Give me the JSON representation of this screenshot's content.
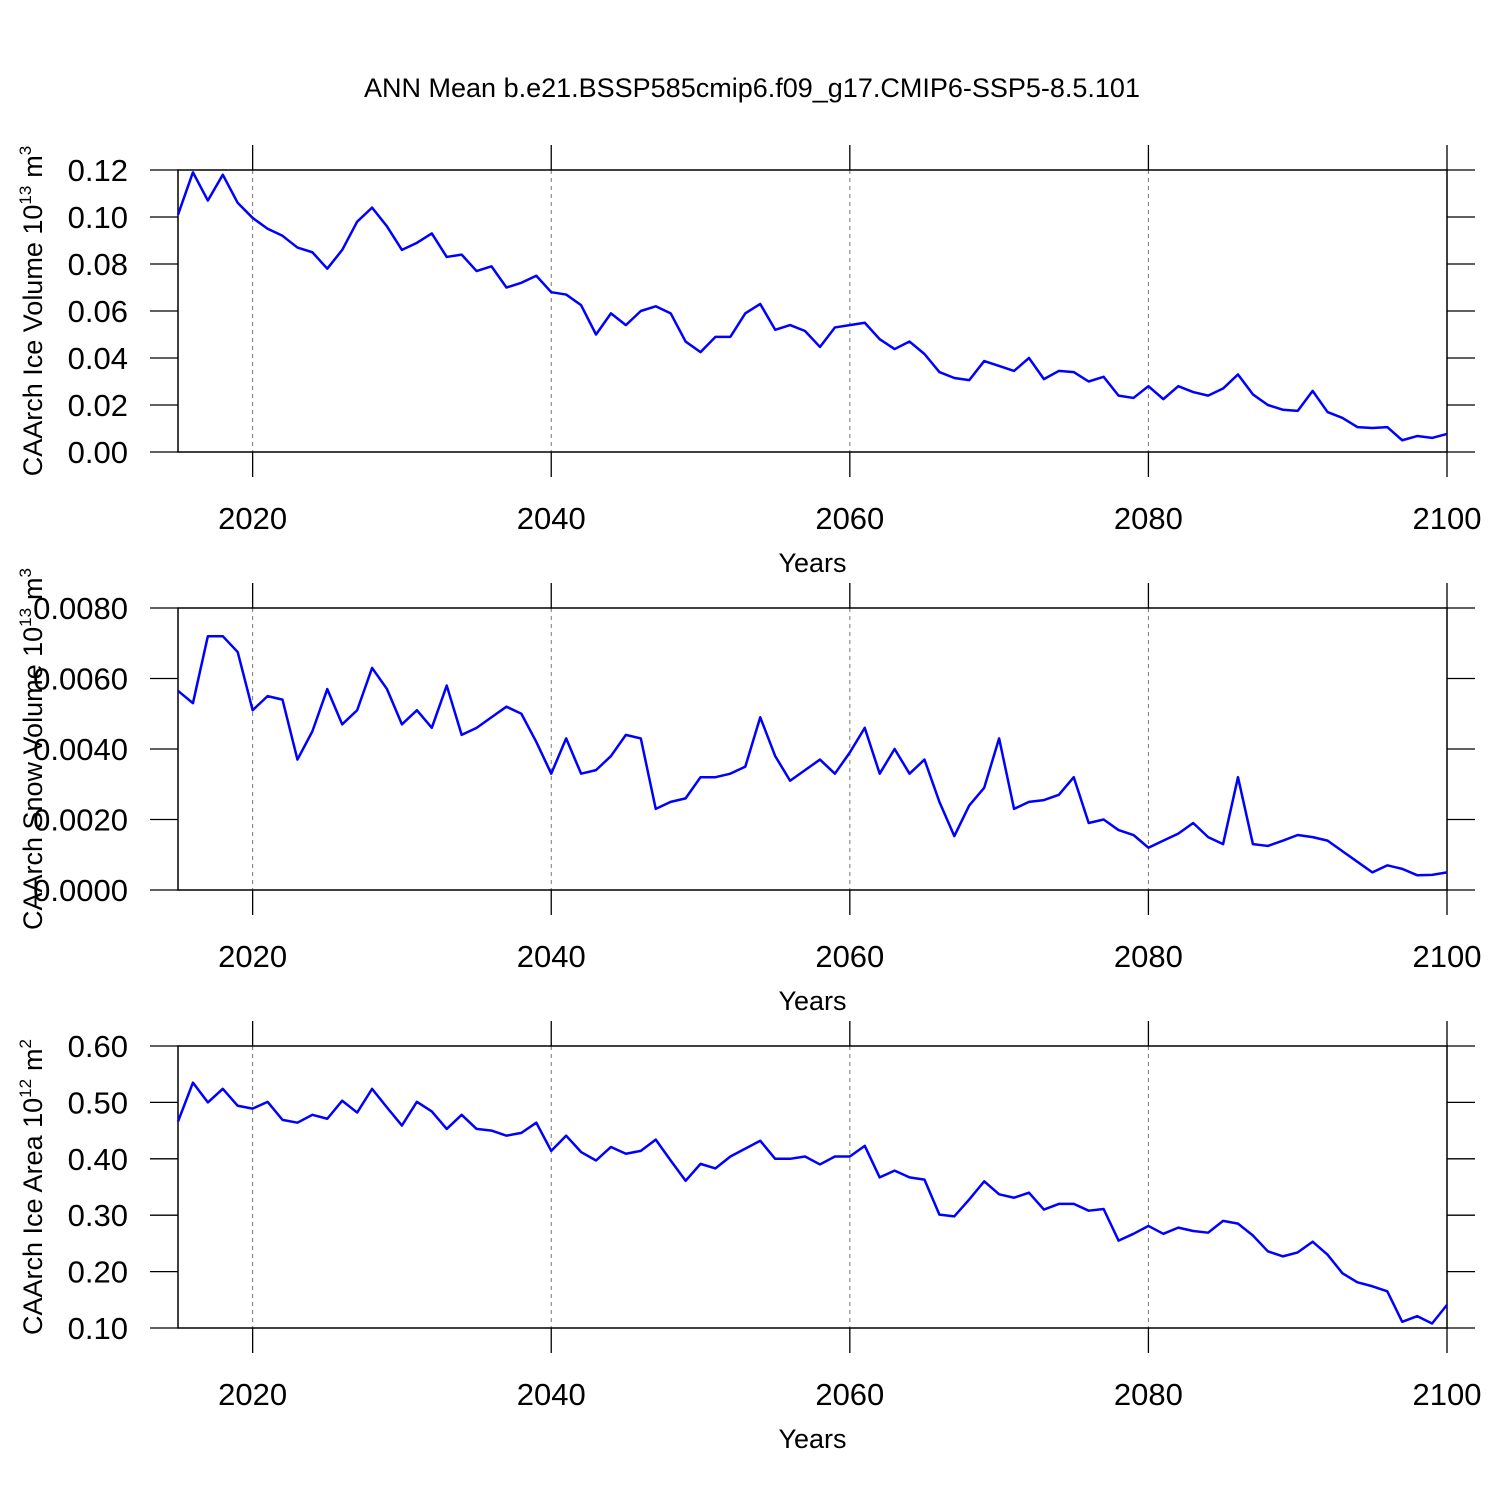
{
  "chart_data": [
    {
      "type": "line",
      "title": "ANN Mean b.e21.BSSP585cmip6.f09_g17.CMIP6-SSP5-8.5.101",
      "ylabel": {
        "text": "CAArch Ice Volume 10",
        "exp": "13",
        "unit": "m",
        "unit_exp": "3"
      },
      "xlabel": "Years",
      "color": "#0000ff",
      "x": [
        2015,
        2016,
        2017,
        2018,
        2019,
        2020,
        2021,
        2022,
        2023,
        2024,
        2025,
        2026,
        2027,
        2028,
        2029,
        2030,
        2031,
        2032,
        2033,
        2034,
        2035,
        2036,
        2037,
        2038,
        2039,
        2040,
        2041,
        2042,
        2043,
        2044,
        2045,
        2046,
        2047,
        2048,
        2049,
        2050,
        2051,
        2052,
        2053,
        2054,
        2055,
        2056,
        2057,
        2058,
        2059,
        2060,
        2061,
        2062,
        2063,
        2064,
        2065,
        2066,
        2067,
        2068,
        2069,
        2070,
        2071,
        2072,
        2073,
        2074,
        2075,
        2076,
        2077,
        2078,
        2079,
        2080,
        2081,
        2082,
        2083,
        2084,
        2085,
        2086,
        2087,
        2088,
        2089,
        2090,
        2091,
        2092,
        2093,
        2094,
        2095,
        2096,
        2097,
        2098,
        2099,
        2100
      ],
      "values": [
        0.101,
        0.119,
        0.107,
        0.118,
        0.106,
        0.0996,
        0.095,
        0.092,
        0.087,
        0.085,
        0.078,
        0.086,
        0.098,
        0.104,
        0.096,
        0.086,
        0.089,
        0.093,
        0.083,
        0.084,
        0.077,
        0.079,
        0.07,
        0.072,
        0.075,
        0.068,
        0.067,
        0.0625,
        0.05,
        0.059,
        0.054,
        0.06,
        0.062,
        0.059,
        0.047,
        0.0425,
        0.049,
        0.049,
        0.059,
        0.063,
        0.052,
        0.054,
        0.0515,
        0.0447,
        0.053,
        0.054,
        0.055,
        0.048,
        0.0438,
        0.047,
        0.0417,
        0.034,
        0.0315,
        0.0306,
        0.0387,
        0.0366,
        0.0345,
        0.04,
        0.031,
        0.0345,
        0.034,
        0.03,
        0.032,
        0.024,
        0.023,
        0.028,
        0.0225,
        0.028,
        0.0255,
        0.024,
        0.027,
        0.033,
        0.0245,
        0.02,
        0.018,
        0.0175,
        0.026,
        0.017,
        0.0145,
        0.0106,
        0.0102,
        0.0106,
        0.005,
        0.0068,
        0.006,
        0.0077
      ],
      "xlim": [
        2015,
        2100
      ],
      "xticks": [
        2020,
        2040,
        2060,
        2080,
        2100
      ],
      "ylim": [
        0,
        0.12
      ],
      "yticks": [
        {
          "value": 0,
          "label": "0.00"
        },
        0.02,
        0.04,
        0.06,
        0.08,
        {
          "value": 0.1,
          "label": "0.10"
        },
        0.12
      ],
      "grid": "x"
    },
    {
      "type": "line",
      "ylabel": {
        "text": "CAArch Snow Volume 10",
        "exp": "13",
        "unit": "m",
        "unit_exp": "3"
      },
      "xlabel": "Years",
      "color": "#0000ff",
      "x": [
        2015,
        2016,
        2017,
        2018,
        2019,
        2020,
        2021,
        2022,
        2023,
        2024,
        2025,
        2026,
        2027,
        2028,
        2029,
        2030,
        2031,
        2032,
        2033,
        2034,
        2035,
        2036,
        2037,
        2038,
        2039,
        2040,
        2041,
        2042,
        2043,
        2044,
        2045,
        2046,
        2047,
        2048,
        2049,
        2050,
        2051,
        2052,
        2053,
        2054,
        2055,
        2056,
        2057,
        2058,
        2059,
        2060,
        2061,
        2062,
        2063,
        2064,
        2065,
        2066,
        2067,
        2068,
        2069,
        2070,
        2071,
        2072,
        2073,
        2074,
        2075,
        2076,
        2077,
        2078,
        2079,
        2080,
        2081,
        2082,
        2083,
        2084,
        2085,
        2086,
        2087,
        2088,
        2089,
        2090,
        2091,
        2092,
        2093,
        2094,
        2095,
        2096,
        2097,
        2098,
        2099,
        2100
      ],
      "values": [
        0.00565,
        0.0053,
        0.0072,
        0.0072,
        0.00675,
        0.0051,
        0.0055,
        0.0054,
        0.0037,
        0.0045,
        0.0057,
        0.0047,
        0.0051,
        0.0063,
        0.0057,
        0.0047,
        0.0051,
        0.0046,
        0.0058,
        0.0044,
        0.0046,
        0.0049,
        0.0052,
        0.005,
        0.0042,
        0.0033,
        0.0043,
        0.0033,
        0.0034,
        0.0038,
        0.0044,
        0.0043,
        0.0023,
        0.0025,
        0.0026,
        0.0032,
        0.0032,
        0.0033,
        0.0035,
        0.0049,
        0.0038,
        0.0031,
        0.0034,
        0.0037,
        0.0033,
        0.0039,
        0.0046,
        0.0033,
        0.004,
        0.0033,
        0.0037,
        0.0025,
        0.00153,
        0.0024,
        0.0029,
        0.0043,
        0.0023,
        0.0025,
        0.00255,
        0.0027,
        0.0032,
        0.0019,
        0.002,
        0.0017,
        0.00156,
        0.0012,
        0.0014,
        0.0016,
        0.0019,
        0.0015,
        0.0013,
        0.0032,
        0.0013,
        0.00125,
        0.0014,
        0.00156,
        0.0015,
        0.0014,
        0.0011,
        0.0008,
        0.0005,
        0.0007,
        0.0006,
        0.00042,
        0.00043,
        0.0005
      ],
      "xlim": [
        2015,
        2100
      ],
      "xticks": [
        2020,
        2040,
        2060,
        2080,
        2100
      ],
      "ylim": [
        0,
        0.008
      ],
      "yticks": [
        {
          "value": 0,
          "label": "0.0000"
        },
        {
          "value": 0.002,
          "label": "0.0020"
        },
        {
          "value": 0.004,
          "label": "0.0040"
        },
        {
          "value": 0.006,
          "label": "0.0060"
        },
        {
          "value": 0.008,
          "label": "0.0080"
        }
      ],
      "grid": "x"
    },
    {
      "type": "line",
      "ylabel": {
        "text": "CAArch Ice Area 10",
        "exp": "12",
        "unit": "m",
        "unit_exp": "2"
      },
      "xlabel": "Years",
      "color": "#0000ff",
      "x": [
        2015,
        2016,
        2017,
        2018,
        2019,
        2020,
        2021,
        2022,
        2023,
        2024,
        2025,
        2026,
        2027,
        2028,
        2029,
        2030,
        2031,
        2032,
        2033,
        2034,
        2035,
        2036,
        2037,
        2038,
        2039,
        2040,
        2041,
        2042,
        2043,
        2044,
        2045,
        2046,
        2047,
        2048,
        2049,
        2050,
        2051,
        2052,
        2053,
        2054,
        2055,
        2056,
        2057,
        2058,
        2059,
        2060,
        2061,
        2062,
        2063,
        2064,
        2065,
        2066,
        2067,
        2068,
        2069,
        2070,
        2071,
        2072,
        2073,
        2074,
        2075,
        2076,
        2077,
        2078,
        2079,
        2080,
        2081,
        2082,
        2083,
        2084,
        2085,
        2086,
        2087,
        2088,
        2089,
        2090,
        2091,
        2092,
        2093,
        2094,
        2095,
        2096,
        2097,
        2098,
        2099,
        2100
      ],
      "values": [
        0.466,
        0.535,
        0.5,
        0.524,
        0.494,
        0.489,
        0.501,
        0.469,
        0.464,
        0.478,
        0.471,
        0.503,
        0.482,
        0.524,
        0.491,
        0.459,
        0.501,
        0.484,
        0.453,
        0.478,
        0.453,
        0.45,
        0.441,
        0.446,
        0.464,
        0.414,
        0.441,
        0.412,
        0.397,
        0.421,
        0.409,
        0.414,
        0.434,
        0.397,
        0.361,
        0.391,
        0.383,
        0.404,
        0.418,
        0.432,
        0.4,
        0.4,
        0.404,
        0.39,
        0.404,
        0.404,
        0.423,
        0.367,
        0.379,
        0.367,
        0.363,
        0.301,
        0.298,
        0.328,
        0.36,
        0.337,
        0.331,
        0.34,
        0.31,
        0.32,
        0.32,
        0.308,
        0.311,
        0.255,
        0.267,
        0.281,
        0.267,
        0.278,
        0.272,
        0.269,
        0.29,
        0.285,
        0.264,
        0.236,
        0.227,
        0.234,
        0.253,
        0.23,
        0.197,
        0.181,
        0.174,
        0.165,
        0.111,
        0.121,
        0.108,
        0.141
      ],
      "xlim": [
        2015,
        2100
      ],
      "xticks": [
        2020,
        2040,
        2060,
        2080,
        2100
      ],
      "ylim": [
        0.1,
        0.6
      ],
      "yticks": [
        {
          "value": 0.1,
          "label": "0.10"
        },
        {
          "value": 0.2,
          "label": "0.20"
        },
        {
          "value": 0.3,
          "label": "0.30"
        },
        {
          "value": 0.4,
          "label": "0.40"
        },
        {
          "value": 0.5,
          "label": "0.50"
        },
        {
          "value": 0.6,
          "label": "0.60"
        }
      ],
      "grid": "x"
    }
  ]
}
